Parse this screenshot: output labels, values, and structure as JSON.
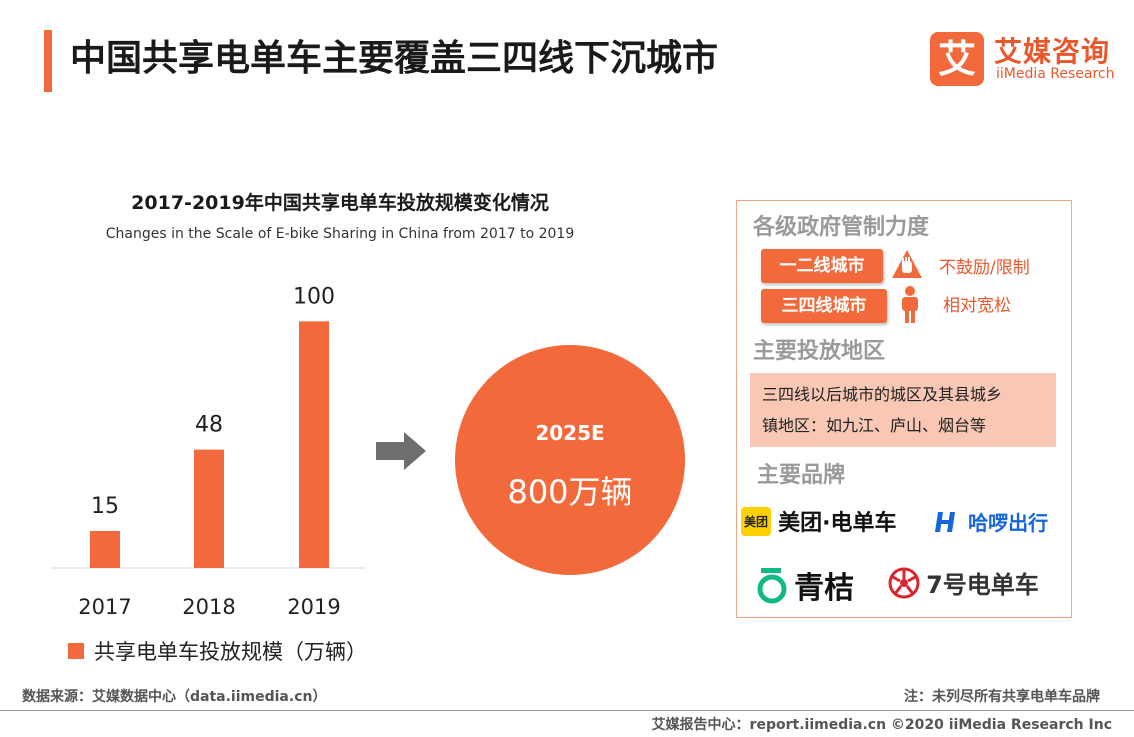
{
  "page": {
    "title": "中国共享电单车主要覆盖三四线下沉城市",
    "logo": {
      "mark": "艾",
      "cn": "艾媒咨询",
      "en": "iiMedia Research"
    }
  },
  "chart_data": {
    "type": "bar",
    "title": "2017-2019年中国共享电单车投放规模变化情况",
    "subtitle": "Changes in the Scale of E-bike Sharing in China from 2017 to 2019",
    "categories": [
      "2017",
      "2018",
      "2019"
    ],
    "series": [
      {
        "name": "共享电单车投放规模（万辆）",
        "values": [
          15,
          48,
          100
        ]
      }
    ],
    "ylim": [
      0,
      120
    ],
    "grid": false,
    "legend_position": "bottom-left",
    "color": "#f26a3b"
  },
  "forecast": {
    "year": "2025E",
    "value": "800万辆"
  },
  "panel": {
    "control_heading": "各级政府管制力度",
    "tiers": [
      {
        "label": "一二线城市",
        "note": "不鼓励/限制",
        "icon": "stop-hand-icon"
      },
      {
        "label": "三四线城市",
        "note": "相对宽松",
        "icon": "person-icon"
      }
    ],
    "region_heading": "主要投放地区",
    "region_lines": [
      "三四线以后城市的城区及其县城乡",
      "镇地区：如九江、庐山、烟台等"
    ],
    "brands_heading": "主要品牌",
    "brands": [
      {
        "badge": "美团",
        "name": "美团·电单车"
      },
      {
        "name": "哈啰出行"
      },
      {
        "name": "青桔"
      },
      {
        "name": "7号电单车"
      }
    ]
  },
  "footer": {
    "source": "数据来源：艾媒数据中心（data.iimedia.cn）",
    "note": "注：未列尽所有共享电单车品牌",
    "copyright": "艾媒报告中心：report.iimedia.cn ©2020  iiMedia Research  Inc"
  },
  "colors": {
    "accent": "#f26a3b",
    "panel_fill": "#f8c8b4",
    "muted_heading": "#9a9a9a"
  }
}
